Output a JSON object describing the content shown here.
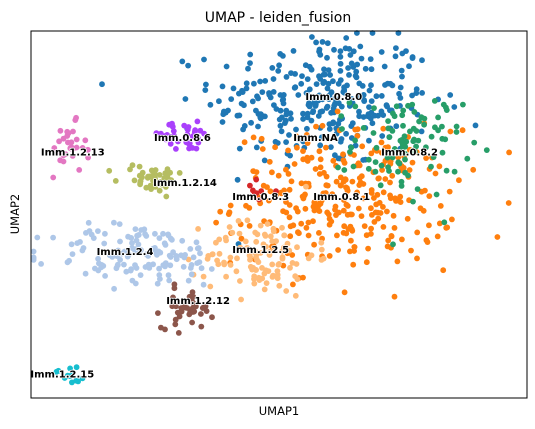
{
  "chart_data": {
    "type": "scatter",
    "title": "UMAP - leiden_fusion",
    "xlabel": "UMAP1",
    "ylabel": "UMAP2",
    "grid": false,
    "legend": "on data",
    "clusters": [
      {
        "name": "Imm.0.8.0",
        "color": "#1f77b4",
        "center": [
          5.6,
          7.3
        ],
        "spread": [
          1.5,
          1.2
        ],
        "n": 300
      },
      {
        "name": "Imm.0.8.1",
        "color": "#ff7f0e",
        "center": [
          6.0,
          4.9
        ],
        "spread": [
          1.5,
          1.2
        ],
        "n": 300
      },
      {
        "name": "Imm.0.8.2",
        "color": "#279e68",
        "center": [
          7.2,
          6.2
        ],
        "spread": [
          0.75,
          0.9
        ],
        "n": 95
      },
      {
        "name": "Imm.0.8.3",
        "color": "#d62728",
        "center": [
          4.4,
          5.1
        ],
        "spread": [
          0.3,
          0.25
        ],
        "n": 8
      },
      {
        "name": "Imm.0.8.6",
        "color": "#aa40fc",
        "center": [
          2.9,
          6.4
        ],
        "spread": [
          0.55,
          0.25
        ],
        "n": 35
      },
      {
        "name": "Imm.1.2.12",
        "color": "#8c564b",
        "center": [
          3.0,
          2.2
        ],
        "spread": [
          0.35,
          0.35
        ],
        "n": 42
      },
      {
        "name": "Imm.1.2.13",
        "color": "#e377c2",
        "center": [
          0.7,
          6.1
        ],
        "spread": [
          0.25,
          0.45
        ],
        "n": 30
      },
      {
        "name": "Imm.1.2.4",
        "color": "#b5bd61",
        "center": [
          2.3,
          5.4
        ],
        "spread": [
          0.45,
          0.25
        ],
        "n": 22
      },
      {
        "name": "Imm.1.2.14",
        "color": "#b5bd61",
        "center": [
          2.3,
          5.4
        ],
        "spread": [
          0.45,
          0.25
        ],
        "n": 22
      },
      {
        "name": "Imm.1.2.15",
        "color": "#17becf",
        "center": [
          0.75,
          0.5
        ],
        "spread": [
          0.2,
          0.2
        ],
        "n": 12
      },
      {
        "name": "Imm.1.2.5",
        "color": "#ffbb78",
        "center": [
          4.4,
          3.5
        ],
        "spread": [
          0.75,
          0.7
        ],
        "n": 110
      },
      {
        "name": "Imm.NA",
        "color": "#aec7e8",
        "center": [
          2.1,
          3.5
        ],
        "spread": [
          1.2,
          0.55
        ],
        "n": 130
      }
    ],
    "labels": [
      {
        "text": "Imm.0.8.0",
        "x": 5.8,
        "y": 7.4
      },
      {
        "text": "Imm.NA",
        "x": 5.45,
        "y": 6.4
      },
      {
        "text": "Imm.0.8.6",
        "x": 2.9,
        "y": 6.4
      },
      {
        "text": "Imm.0.8.2",
        "x": 7.25,
        "y": 6.05
      },
      {
        "text": "Imm.1.2.13",
        "x": 0.8,
        "y": 6.05
      },
      {
        "text": "Imm.1.2.14",
        "x": 2.95,
        "y": 5.3
      },
      {
        "text": "Imm.0.8.3",
        "x": 4.4,
        "y": 4.95
      },
      {
        "text": "Imm.0.8.1",
        "x": 5.95,
        "y": 4.95
      },
      {
        "text": "Imm.1.2.4",
        "x": 1.8,
        "y": 3.6
      },
      {
        "text": "Imm.1.2.5",
        "x": 4.4,
        "y": 3.65
      },
      {
        "text": "Imm.1.2.12",
        "x": 3.2,
        "y": 2.4
      },
      {
        "text": "Imm.1.2.15",
        "x": 0.6,
        "y": 0.6
      }
    ],
    "xlim": [
      0,
      9.5
    ],
    "ylim": [
      0,
      9
    ]
  }
}
